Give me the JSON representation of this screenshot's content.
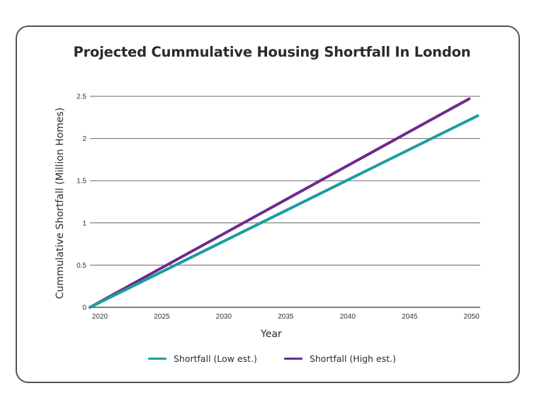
{
  "chart_data": {
    "type": "line",
    "title": "Projected Cummulative Housing Shortfall In London",
    "xlabel": "Year",
    "ylabel": "Cummulative Shortfall (Million Homes)",
    "xlim": [
      2019.2,
      2050.7
    ],
    "ylim": [
      0,
      2.5
    ],
    "x_ticks": [
      2020,
      2025,
      2030,
      2035,
      2040,
      2045,
      2050
    ],
    "x_tick_labels": [
      "2020",
      "2025",
      "2030",
      "2035",
      "2040",
      "2045",
      "2050"
    ],
    "y_ticks": [
      0,
      0.5,
      1,
      1.5,
      2,
      2.5
    ],
    "y_tick_labels": [
      "0",
      "0.5",
      "1",
      "1.5",
      "2",
      "2.5"
    ],
    "grid": true,
    "legend_position": "bottom",
    "series": [
      {
        "name": "Shortfall (Low est.)",
        "color": "#1a9e9e",
        "x": [
          2019.2,
          2050.5
        ],
        "values": [
          0,
          2.27
        ]
      },
      {
        "name": "Shortfall (High est.)",
        "color": "#6f2a8e",
        "x": [
          2019.2,
          2049.8
        ],
        "values": [
          0,
          2.47
        ]
      }
    ]
  }
}
